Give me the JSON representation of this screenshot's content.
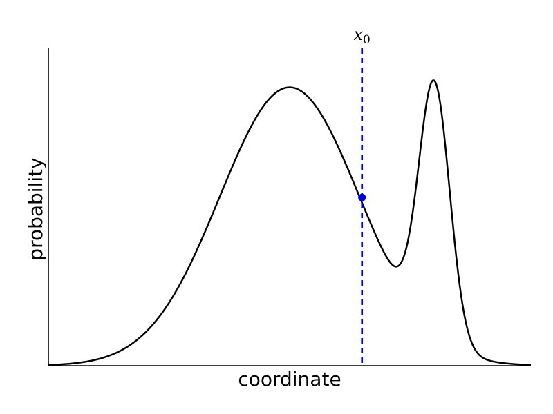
{
  "chart_data": {
    "type": "line",
    "xlabel": "coordinate",
    "ylabel": "probability",
    "xlim": [
      0,
      1
    ],
    "ylim": [
      0,
      1
    ],
    "grid": false,
    "series": [
      {
        "color": "#000000",
        "components": [
          {
            "mu": 0.5,
            "sigma": 0.145,
            "amp": 0.877
          },
          {
            "mu": 0.8,
            "sigma": 0.032,
            "amp": 0.795
          }
        ]
      }
    ],
    "marker": {
      "label_base": "x",
      "label_sub": "0",
      "x": 0.65,
      "y": 0.53,
      "color": "#0000dd"
    }
  }
}
